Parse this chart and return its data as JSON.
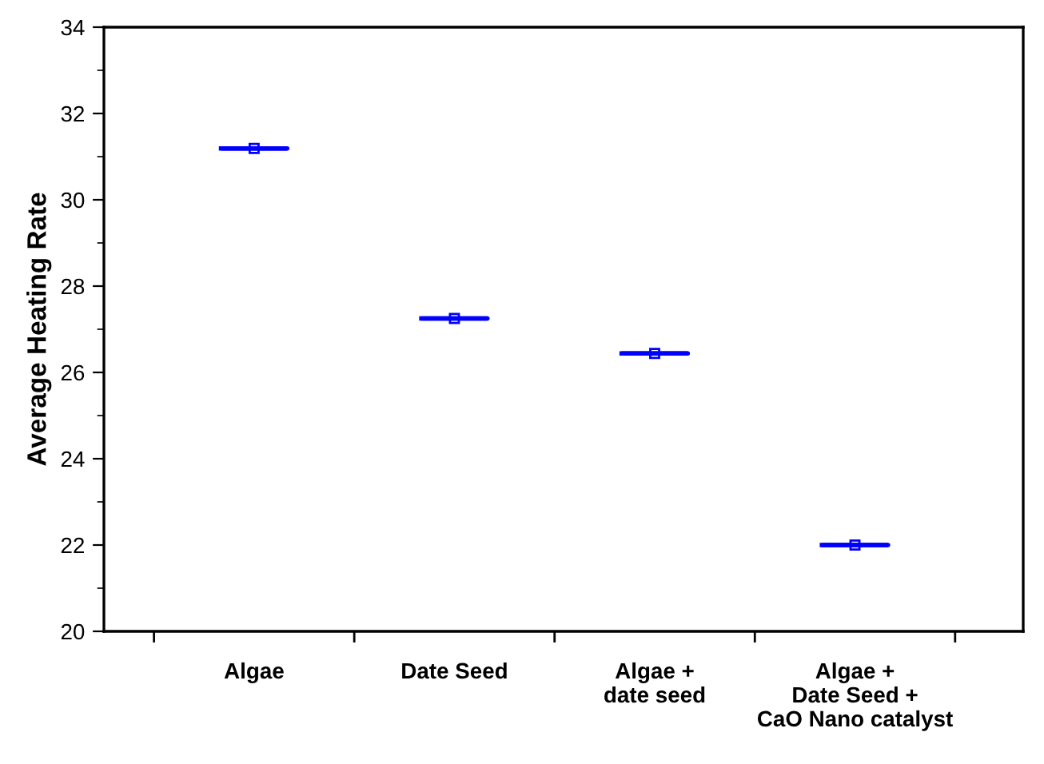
{
  "chart_data": {
    "type": "box",
    "ylabel": "Average Heating Rate",
    "categories": [
      "Algae",
      "Date Seed",
      "Algae +\ndate seed",
      "Algae +\nDate Seed +\nCaO Nano catalyst"
    ],
    "series": [
      {
        "color": "#0000ff",
        "boxes": [
          {
            "low": 31.19,
            "q1": 31.19,
            "median": 31.19,
            "q3": 31.19,
            "high": 31.19,
            "mean": 31.19
          },
          {
            "low": 27.25,
            "q1": 27.25,
            "median": 27.25,
            "q3": 27.25,
            "high": 27.25,
            "mean": 27.25
          },
          {
            "low": 26.44,
            "q1": 26.44,
            "median": 26.44,
            "q3": 26.44,
            "high": 26.44,
            "mean": 26.44
          },
          {
            "low": 22.0,
            "q1": 22.0,
            "median": 22.0,
            "q3": 22.0,
            "high": 22.0,
            "mean": 22.0
          }
        ]
      }
    ],
    "ylim": [
      20,
      34
    ],
    "yticks": [
      20,
      22,
      24,
      26,
      28,
      30,
      32,
      34
    ],
    "grid": false,
    "legend": false
  }
}
